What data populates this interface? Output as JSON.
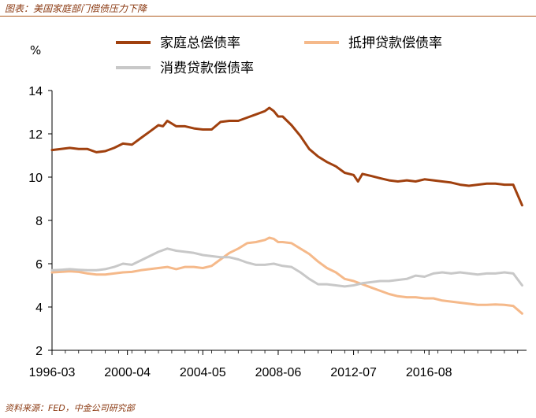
{
  "caption": {
    "title": "图表：美国家庭部门偿债压力下降",
    "source": "资料来源：FED，中金公司研究部"
  },
  "chart_data": {
    "type": "line",
    "unit_label": "%",
    "ylim": [
      2,
      14
    ],
    "y_ticks": [
      "2",
      "4",
      "6",
      "8",
      "10",
      "12",
      "14"
    ],
    "x_tick_labels": [
      "1996-03",
      "2000-04",
      "2004-05",
      "2008-06",
      "2012-07",
      "2016-08"
    ],
    "x_tick_values": [
      1996.0,
      2000.25,
      2004.5,
      2008.75,
      2013.0,
      2017.25
    ],
    "xlim": [
      1996.0,
      2022.75
    ],
    "grid": false,
    "legend_position": "top",
    "series": [
      {
        "name": "家庭总偿债率",
        "color": "#a0400e",
        "x": [
          1996.0,
          1996.5,
          1997.0,
          1997.5,
          1998.0,
          1998.5,
          1999.0,
          1999.5,
          2000.0,
          2000.5,
          2001.0,
          2001.5,
          2002.0,
          2002.25,
          2002.5,
          2003.0,
          2003.5,
          2004.0,
          2004.5,
          2005.0,
          2005.5,
          2006.0,
          2006.5,
          2007.0,
          2007.5,
          2008.0,
          2008.25,
          2008.5,
          2008.75,
          2009.0,
          2009.5,
          2010.0,
          2010.5,
          2011.0,
          2011.5,
          2012.0,
          2012.5,
          2013.0,
          2013.25,
          2013.5,
          2014.0,
          2014.5,
          2015.0,
          2015.5,
          2016.0,
          2016.5,
          2017.0,
          2017.5,
          2018.0,
          2018.5,
          2019.0,
          2019.5,
          2020.0,
          2020.5,
          2021.0,
          2021.5,
          2022.0,
          2022.5
        ],
        "values": [
          11.25,
          11.3,
          11.35,
          11.3,
          11.3,
          11.15,
          11.2,
          11.35,
          11.55,
          11.5,
          11.8,
          12.1,
          12.4,
          12.35,
          12.6,
          12.35,
          12.35,
          12.25,
          12.2,
          12.2,
          12.55,
          12.6,
          12.6,
          12.75,
          12.9,
          13.05,
          13.2,
          13.05,
          12.8,
          12.8,
          12.4,
          11.9,
          11.3,
          10.95,
          10.7,
          10.5,
          10.2,
          10.1,
          9.8,
          10.15,
          10.05,
          9.95,
          9.85,
          9.8,
          9.85,
          9.8,
          9.9,
          9.85,
          9.8,
          9.75,
          9.65,
          9.6,
          9.65,
          9.7,
          9.7,
          9.65,
          9.65,
          8.7
        ]
      },
      {
        "name": "抵押贷款偿债率",
        "color": "#f5b98a",
        "x": [
          1996.0,
          1996.5,
          1997.0,
          1997.5,
          1998.0,
          1998.5,
          1999.0,
          1999.5,
          2000.0,
          2000.5,
          2001.0,
          2001.5,
          2002.0,
          2002.5,
          2003.0,
          2003.5,
          2004.0,
          2004.5,
          2005.0,
          2005.5,
          2006.0,
          2006.5,
          2007.0,
          2007.5,
          2008.0,
          2008.25,
          2008.5,
          2008.75,
          2009.0,
          2009.5,
          2010.0,
          2010.5,
          2011.0,
          2011.5,
          2012.0,
          2012.5,
          2013.0,
          2013.5,
          2014.0,
          2014.5,
          2015.0,
          2015.5,
          2016.0,
          2016.5,
          2017.0,
          2017.5,
          2018.0,
          2018.5,
          2019.0,
          2019.5,
          2020.0,
          2020.5,
          2021.0,
          2021.5,
          2022.0,
          2022.5
        ],
        "values": [
          5.6,
          5.62,
          5.65,
          5.62,
          5.55,
          5.5,
          5.5,
          5.55,
          5.6,
          5.62,
          5.7,
          5.75,
          5.8,
          5.85,
          5.75,
          5.85,
          5.85,
          5.8,
          5.9,
          6.2,
          6.5,
          6.7,
          6.95,
          7.0,
          7.1,
          7.2,
          7.15,
          7.0,
          7.0,
          6.95,
          6.7,
          6.45,
          6.1,
          5.8,
          5.6,
          5.3,
          5.2,
          5.05,
          4.9,
          4.75,
          4.6,
          4.5,
          4.45,
          4.45,
          4.4,
          4.4,
          4.3,
          4.25,
          4.2,
          4.15,
          4.1,
          4.1,
          4.12,
          4.1,
          4.05,
          3.7
        ]
      },
      {
        "name": "消费贷款偿债率",
        "color": "#c8c8c8",
        "x": [
          1996.0,
          1996.5,
          1997.0,
          1997.5,
          1998.0,
          1998.5,
          1999.0,
          1999.5,
          2000.0,
          2000.5,
          2001.0,
          2001.5,
          2002.0,
          2002.5,
          2003.0,
          2003.5,
          2004.0,
          2004.5,
          2005.0,
          2005.5,
          2006.0,
          2006.5,
          2007.0,
          2007.5,
          2008.0,
          2008.5,
          2009.0,
          2009.5,
          2010.0,
          2010.5,
          2011.0,
          2011.5,
          2012.0,
          2012.5,
          2013.0,
          2013.5,
          2014.0,
          2014.5,
          2015.0,
          2015.5,
          2016.0,
          2016.5,
          2017.0,
          2017.5,
          2018.0,
          2018.5,
          2019.0,
          2019.5,
          2020.0,
          2020.5,
          2021.0,
          2021.5,
          2022.0,
          2022.5
        ],
        "values": [
          5.7,
          5.72,
          5.75,
          5.72,
          5.7,
          5.7,
          5.75,
          5.85,
          6.0,
          5.95,
          6.15,
          6.35,
          6.55,
          6.7,
          6.6,
          6.55,
          6.5,
          6.4,
          6.35,
          6.3,
          6.3,
          6.2,
          6.05,
          5.95,
          5.95,
          6.0,
          5.9,
          5.85,
          5.6,
          5.3,
          5.05,
          5.05,
          5.0,
          4.95,
          5.0,
          5.1,
          5.15,
          5.2,
          5.2,
          5.25,
          5.3,
          5.45,
          5.4,
          5.55,
          5.6,
          5.55,
          5.6,
          5.55,
          5.5,
          5.55,
          5.55,
          5.6,
          5.55,
          5.0
        ]
      }
    ]
  }
}
